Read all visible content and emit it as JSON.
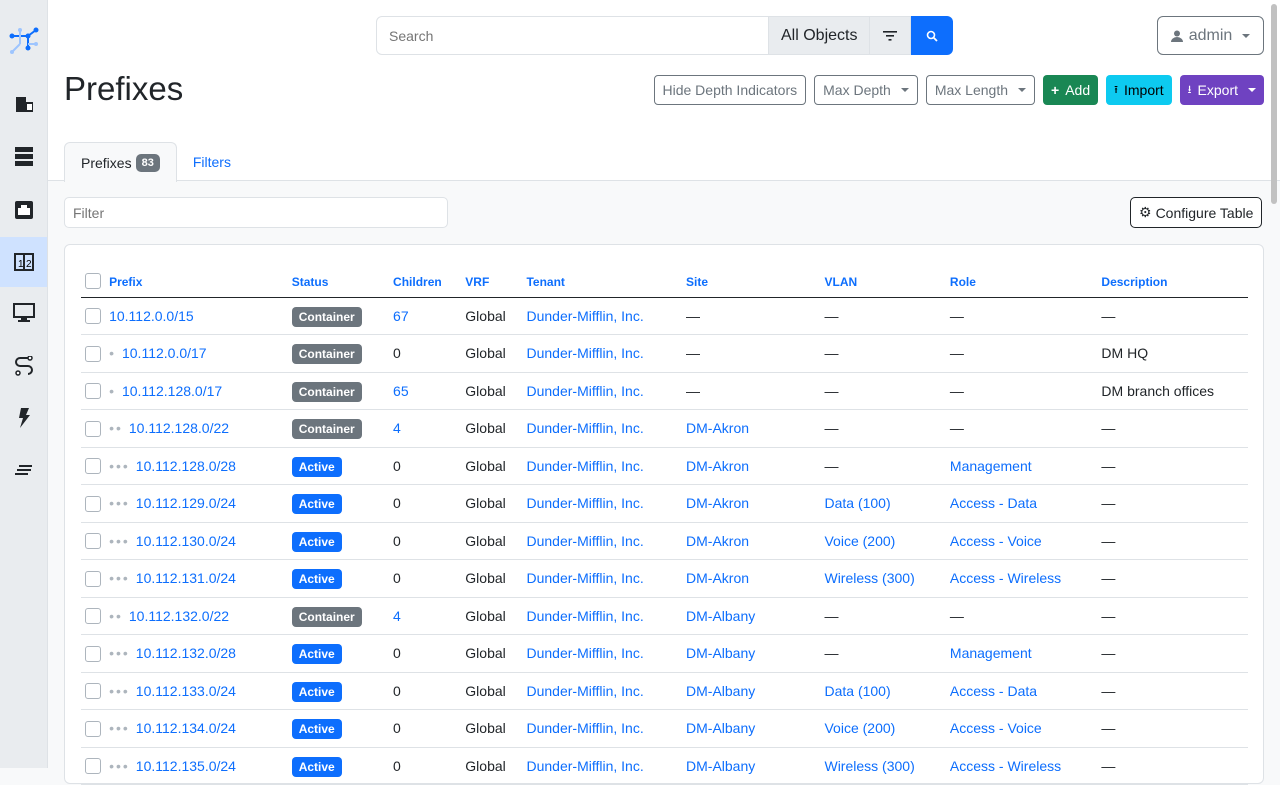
{
  "search": {
    "placeholder": "Search",
    "scope": "All Objects"
  },
  "user": {
    "name": "admin"
  },
  "page": {
    "title": "Prefixes"
  },
  "actions": {
    "hide_depth": "Hide Depth Indicators",
    "max_depth": "Max Depth",
    "max_length": "Max Length",
    "add": "Add",
    "import": "Import",
    "export": "Export"
  },
  "colors": {
    "primary": "#0d6efd",
    "add": "#198754",
    "import": "#0dcaf0",
    "export": "#6f42c1",
    "container": "#6c757d",
    "active": "#0d6efd"
  },
  "tabs": [
    {
      "label": "Prefixes",
      "count": "83"
    },
    {
      "label": "Filters"
    }
  ],
  "filter": {
    "placeholder": "Filter"
  },
  "configure_table": "Configure Table",
  "sidebar": [
    "logo",
    "organization-icon",
    "devices-icon",
    "connections-icon",
    "ipam-icon",
    "virtualization-icon",
    "circuits-icon",
    "power-icon",
    "other-icon"
  ],
  "table": {
    "columns": [
      "Prefix",
      "Status",
      "Children",
      "VRF",
      "Tenant",
      "Site",
      "VLAN",
      "Role",
      "Description"
    ],
    "rows": [
      {
        "depth": 0,
        "prefix": "10.112.0.0/15",
        "status": "Container",
        "children": "67",
        "vrf": "Global",
        "tenant": "Dunder-Mifflin, Inc.",
        "site": "—",
        "vlan": "—",
        "role": "—",
        "description": "—"
      },
      {
        "depth": 1,
        "prefix": "10.112.0.0/17",
        "status": "Container",
        "children": "0",
        "vrf": "Global",
        "tenant": "Dunder-Mifflin, Inc.",
        "site": "—",
        "vlan": "—",
        "role": "—",
        "description": "DM HQ"
      },
      {
        "depth": 1,
        "prefix": "10.112.128.0/17",
        "status": "Container",
        "children": "65",
        "vrf": "Global",
        "tenant": "Dunder-Mifflin, Inc.",
        "site": "—",
        "vlan": "—",
        "role": "—",
        "description": "DM branch offices"
      },
      {
        "depth": 2,
        "prefix": "10.112.128.0/22",
        "status": "Container",
        "children": "4",
        "vrf": "Global",
        "tenant": "Dunder-Mifflin, Inc.",
        "site": "DM-Akron",
        "vlan": "—",
        "role": "—",
        "description": "—"
      },
      {
        "depth": 3,
        "prefix": "10.112.128.0/28",
        "status": "Active",
        "children": "0",
        "vrf": "Global",
        "tenant": "Dunder-Mifflin, Inc.",
        "site": "DM-Akron",
        "vlan": "—",
        "role": "Management",
        "description": "—"
      },
      {
        "depth": 3,
        "prefix": "10.112.129.0/24",
        "status": "Active",
        "children": "0",
        "vrf": "Global",
        "tenant": "Dunder-Mifflin, Inc.",
        "site": "DM-Akron",
        "vlan": "Data (100)",
        "role": "Access - Data",
        "description": "—"
      },
      {
        "depth": 3,
        "prefix": "10.112.130.0/24",
        "status": "Active",
        "children": "0",
        "vrf": "Global",
        "tenant": "Dunder-Mifflin, Inc.",
        "site": "DM-Akron",
        "vlan": "Voice (200)",
        "role": "Access - Voice",
        "description": "—"
      },
      {
        "depth": 3,
        "prefix": "10.112.131.0/24",
        "status": "Active",
        "children": "0",
        "vrf": "Global",
        "tenant": "Dunder-Mifflin, Inc.",
        "site": "DM-Akron",
        "vlan": "Wireless (300)",
        "role": "Access - Wireless",
        "description": "—"
      },
      {
        "depth": 2,
        "prefix": "10.112.132.0/22",
        "status": "Container",
        "children": "4",
        "vrf": "Global",
        "tenant": "Dunder-Mifflin, Inc.",
        "site": "DM-Albany",
        "vlan": "—",
        "role": "—",
        "description": "—"
      },
      {
        "depth": 3,
        "prefix": "10.112.132.0/28",
        "status": "Active",
        "children": "0",
        "vrf": "Global",
        "tenant": "Dunder-Mifflin, Inc.",
        "site": "DM-Albany",
        "vlan": "—",
        "role": "Management",
        "description": "—"
      },
      {
        "depth": 3,
        "prefix": "10.112.133.0/24",
        "status": "Active",
        "children": "0",
        "vrf": "Global",
        "tenant": "Dunder-Mifflin, Inc.",
        "site": "DM-Albany",
        "vlan": "Data (100)",
        "role": "Access - Data",
        "description": "—"
      },
      {
        "depth": 3,
        "prefix": "10.112.134.0/24",
        "status": "Active",
        "children": "0",
        "vrf": "Global",
        "tenant": "Dunder-Mifflin, Inc.",
        "site": "DM-Albany",
        "vlan": "Voice (200)",
        "role": "Access - Voice",
        "description": "—"
      },
      {
        "depth": 3,
        "prefix": "10.112.135.0/24",
        "status": "Active",
        "children": "0",
        "vrf": "Global",
        "tenant": "Dunder-Mifflin, Inc.",
        "site": "DM-Albany",
        "vlan": "Wireless (300)",
        "role": "Access - Wireless",
        "description": "—"
      }
    ]
  }
}
